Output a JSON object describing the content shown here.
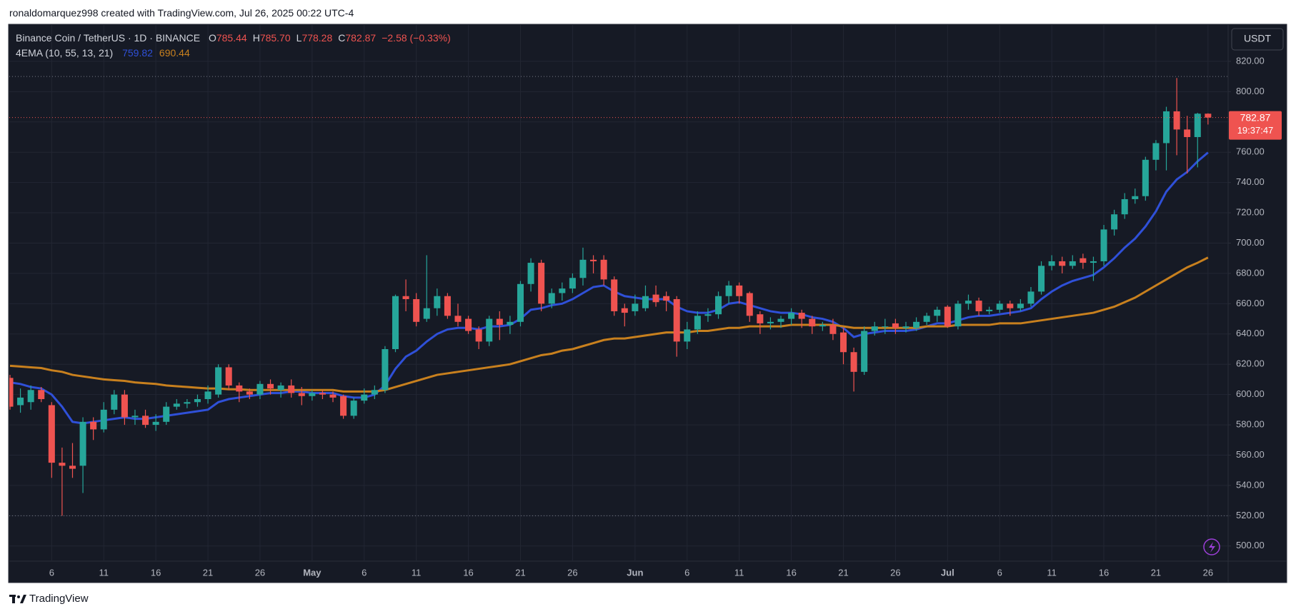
{
  "header": {
    "text": "ronaldomarquez998 created with TradingView.com, Jul 26, 2025 00:22 UTC-4"
  },
  "footer": {
    "brand": "TradingView"
  },
  "chart_data": {
    "type": "candlestick",
    "title": "Binance Coin / TetherUS · 1D · BINANCE",
    "ohlc_legend": [
      {
        "key": "O",
        "label": "785.44"
      },
      {
        "key": "H",
        "label": "785.70"
      },
      {
        "key": "L",
        "label": "778.28"
      },
      {
        "key": "C",
        "label": "782.87"
      }
    ],
    "change_label": "−2.58 (−0.33%)",
    "indicator_label": "4EMA (10, 55, 13, 21)",
    "currency_button": "USDT",
    "countdown": "19:37:47",
    "up_color": "#26a69a",
    "down_color": "#ef5350",
    "grid": true,
    "categories": [
      null,
      null,
      null,
      null,
      "6",
      null,
      null,
      null,
      null,
      "11",
      null,
      null,
      null,
      null,
      "16",
      null,
      null,
      null,
      null,
      "21",
      null,
      null,
      null,
      null,
      "26",
      null,
      null,
      null,
      null,
      "May",
      null,
      null,
      null,
      null,
      "6",
      null,
      null,
      null,
      null,
      "11",
      null,
      null,
      null,
      null,
      "16",
      null,
      null,
      null,
      null,
      "21",
      null,
      null,
      null,
      null,
      "26",
      null,
      null,
      null,
      null,
      null,
      "Jun",
      null,
      null,
      null,
      null,
      "6",
      null,
      null,
      null,
      null,
      "11",
      null,
      null,
      null,
      null,
      "16",
      null,
      null,
      null,
      null,
      "21",
      null,
      null,
      null,
      null,
      "26",
      null,
      null,
      null,
      null,
      "Jul",
      null,
      null,
      null,
      null,
      "6",
      null,
      null,
      null,
      null,
      "11",
      null,
      null,
      null,
      null,
      "16",
      null,
      null,
      null,
      null,
      "21",
      null,
      null,
      null,
      null,
      "26"
    ],
    "open": [
      611,
      593,
      595,
      603,
      593,
      555,
      553,
      553,
      582,
      577,
      590,
      600,
      585,
      586,
      580,
      582,
      592,
      594,
      595,
      597,
      600,
      618,
      606,
      602,
      600,
      607,
      603,
      606,
      601,
      599,
      601,
      600,
      599,
      586,
      596,
      600,
      603,
      630,
      665,
      663,
      650,
      657,
      665,
      652,
      650,
      643,
      635,
      650,
      646,
      648,
      673,
      687,
      660,
      667,
      670,
      677,
      689,
      689,
      676,
      657,
      655,
      657,
      666,
      665,
      663,
      635,
      643,
      652,
      653,
      665,
      672,
      667,
      653,
      647,
      648,
      650,
      654,
      650,
      645,
      646,
      641,
      628,
      615,
      642,
      645,
      647,
      644,
      644,
      648,
      652,
      658,
      645,
      660,
      662,
      655,
      656,
      660,
      657,
      660,
      668,
      685,
      688,
      685,
      690,
      687,
      688,
      709,
      719,
      729,
      731,
      755,
      766,
      787,
      775,
      770,
      785.44
    ],
    "high": [
      613,
      604,
      606,
      605,
      595,
      565,
      568,
      585,
      585,
      595,
      603,
      603,
      590,
      590,
      587,
      595,
      597,
      597,
      600,
      606,
      620,
      620,
      608,
      604,
      609,
      610,
      608,
      610,
      605,
      603,
      603,
      602,
      600,
      598,
      604,
      606,
      632,
      666,
      676,
      667,
      692,
      670,
      667,
      660,
      652,
      645,
      652,
      655,
      652,
      675,
      690,
      689,
      670,
      674,
      680,
      697,
      692,
      692,
      678,
      660,
      666,
      672,
      672,
      668,
      665,
      648,
      655,
      657,
      668,
      675,
      674,
      668,
      655,
      651,
      652,
      657,
      656,
      652,
      648,
      650,
      644,
      631,
      645,
      648,
      650,
      650,
      648,
      651,
      654,
      658,
      659,
      662,
      666,
      664,
      658,
      662,
      662,
      663,
      671,
      688,
      692,
      691,
      692,
      693,
      691,
      712,
      722,
      733,
      736,
      757,
      768,
      790,
      809,
      784,
      786,
      785.7
    ],
    "low": [
      590,
      588,
      590,
      595,
      545,
      520,
      545,
      535,
      570,
      575,
      587,
      580,
      580,
      578,
      576,
      580,
      590,
      591,
      592,
      594,
      598,
      603,
      595,
      597,
      597,
      600,
      598,
      598,
      593,
      596,
      597,
      595,
      584,
      584,
      594,
      597,
      601,
      628,
      655,
      645,
      648,
      652,
      650,
      645,
      640,
      630,
      632,
      636,
      640,
      645,
      668,
      655,
      657,
      662,
      667,
      672,
      680,
      672,
      652,
      645,
      652,
      655,
      658,
      655,
      625,
      630,
      640,
      648,
      650,
      660,
      660,
      648,
      640,
      643,
      644,
      646,
      644,
      640,
      642,
      636,
      620,
      602,
      613,
      639,
      640,
      640,
      641,
      642,
      646,
      648,
      644,
      643,
      656,
      652,
      653,
      654,
      652,
      655,
      658,
      666,
      682,
      680,
      683,
      683,
      675,
      685,
      705,
      716,
      726,
      728,
      748,
      748,
      758,
      746,
      750,
      778.28
    ],
    "close": [
      592,
      598,
      603,
      597,
      555,
      553,
      551,
      582,
      577,
      590,
      600,
      585,
      586,
      580,
      582,
      592,
      594,
      595,
      597,
      602,
      618,
      606,
      602,
      600,
      607,
      604,
      606,
      601,
      599,
      601,
      600,
      598,
      586,
      596,
      600,
      603,
      630,
      665,
      663,
      648,
      657,
      665,
      652,
      648,
      642,
      635,
      650,
      646,
      648,
      673,
      687,
      660,
      667,
      670,
      677,
      689,
      688,
      676,
      655,
      654,
      660,
      665,
      661,
      662,
      635,
      643,
      652,
      653,
      665,
      672,
      665,
      652,
      647,
      648,
      650,
      654,
      650,
      645,
      646,
      640,
      628,
      615,
      642,
      645,
      645,
      644,
      645,
      648,
      652,
      656,
      645,
      660,
      662,
      655,
      656,
      660,
      657,
      660,
      668,
      685,
      688,
      685,
      688,
      687,
      688,
      709,
      719,
      729,
      731,
      755,
      766,
      787,
      775,
      770,
      785.44,
      782.87
    ],
    "lines": [
      {
        "color": "#2f50d8",
        "values": [
          608,
          607,
          605,
          604,
          600,
          592,
          582,
          581,
          582,
          583,
          584,
          585,
          584,
          584,
          585,
          586,
          587,
          588,
          589,
          590,
          595,
          597,
          598,
          599,
          600,
          601,
          601,
          602,
          602,
          601,
          601,
          601,
          599,
          598,
          598,
          600,
          606,
          617,
          625,
          629,
          635,
          640,
          643,
          644,
          644,
          643,
          645,
          645,
          646,
          650,
          656,
          657,
          659,
          660,
          663,
          667,
          671,
          672,
          668,
          665,
          664,
          663,
          663,
          663,
          658,
          655,
          654,
          654,
          656,
          660,
          661,
          659,
          657,
          655,
          654,
          654,
          653,
          651,
          650,
          648,
          644,
          638,
          640,
          641,
          642,
          642,
          642,
          643,
          645,
          647,
          647,
          649,
          651,
          652,
          652,
          653,
          654,
          655,
          657,
          663,
          668,
          672,
          675,
          677,
          679,
          684,
          690,
          697,
          703,
          711,
          721,
          734,
          742,
          747,
          754,
          759.82
        ]
      },
      {
        "color": "#c8801e",
        "values": [
          619,
          618.5,
          618,
          617.5,
          616,
          615,
          613,
          612,
          611,
          610,
          609.5,
          609,
          608,
          607.5,
          607,
          606,
          605.5,
          605,
          604.5,
          604,
          604,
          603.5,
          603.5,
          603,
          603,
          603,
          603,
          603,
          603,
          603,
          603,
          603,
          602,
          602,
          602,
          602,
          603,
          605,
          607,
          609,
          611,
          613,
          614,
          615,
          616,
          617,
          618,
          619,
          620,
          622,
          624,
          626,
          627,
          629,
          630,
          632,
          634,
          636,
          637,
          637,
          638,
          639,
          640,
          641,
          641,
          641,
          642,
          642,
          643,
          644,
          644,
          645,
          645,
          645,
          645,
          646,
          646,
          646,
          646,
          646,
          645,
          644,
          644,
          644,
          644,
          644,
          644,
          644,
          645,
          645,
          645,
          646,
          646,
          646,
          646,
          647,
          647,
          647,
          648,
          649,
          650,
          651,
          652,
          653,
          654,
          656,
          658,
          661,
          664,
          668,
          672,
          676,
          680,
          684,
          687,
          690.44
        ]
      }
    ],
    "hlines": [
      810,
      520
    ],
    "ylim": [
      490,
      844
    ],
    "yticks": [
      {
        "value": 500,
        "label": "500.00"
      },
      {
        "value": 520,
        "label": "520.00"
      },
      {
        "value": 540,
        "label": "540.00"
      },
      {
        "value": 560,
        "label": "560.00"
      },
      {
        "value": 580,
        "label": "580.00"
      },
      {
        "value": 600,
        "label": "600.00"
      },
      {
        "value": 620,
        "label": "620.00"
      },
      {
        "value": 640,
        "label": "640.00"
      },
      {
        "value": 660,
        "label": "660.00"
      },
      {
        "value": 680,
        "label": "680.00"
      },
      {
        "value": 700,
        "label": "700.00"
      },
      {
        "value": 720,
        "label": "720.00"
      },
      {
        "value": 740,
        "label": "740.00"
      },
      {
        "value": 760,
        "label": "760.00"
      },
      {
        "value": 780,
        "label": "780.00"
      },
      {
        "value": 800,
        "label": "800.00"
      },
      {
        "value": 820,
        "label": "820.00"
      }
    ]
  }
}
